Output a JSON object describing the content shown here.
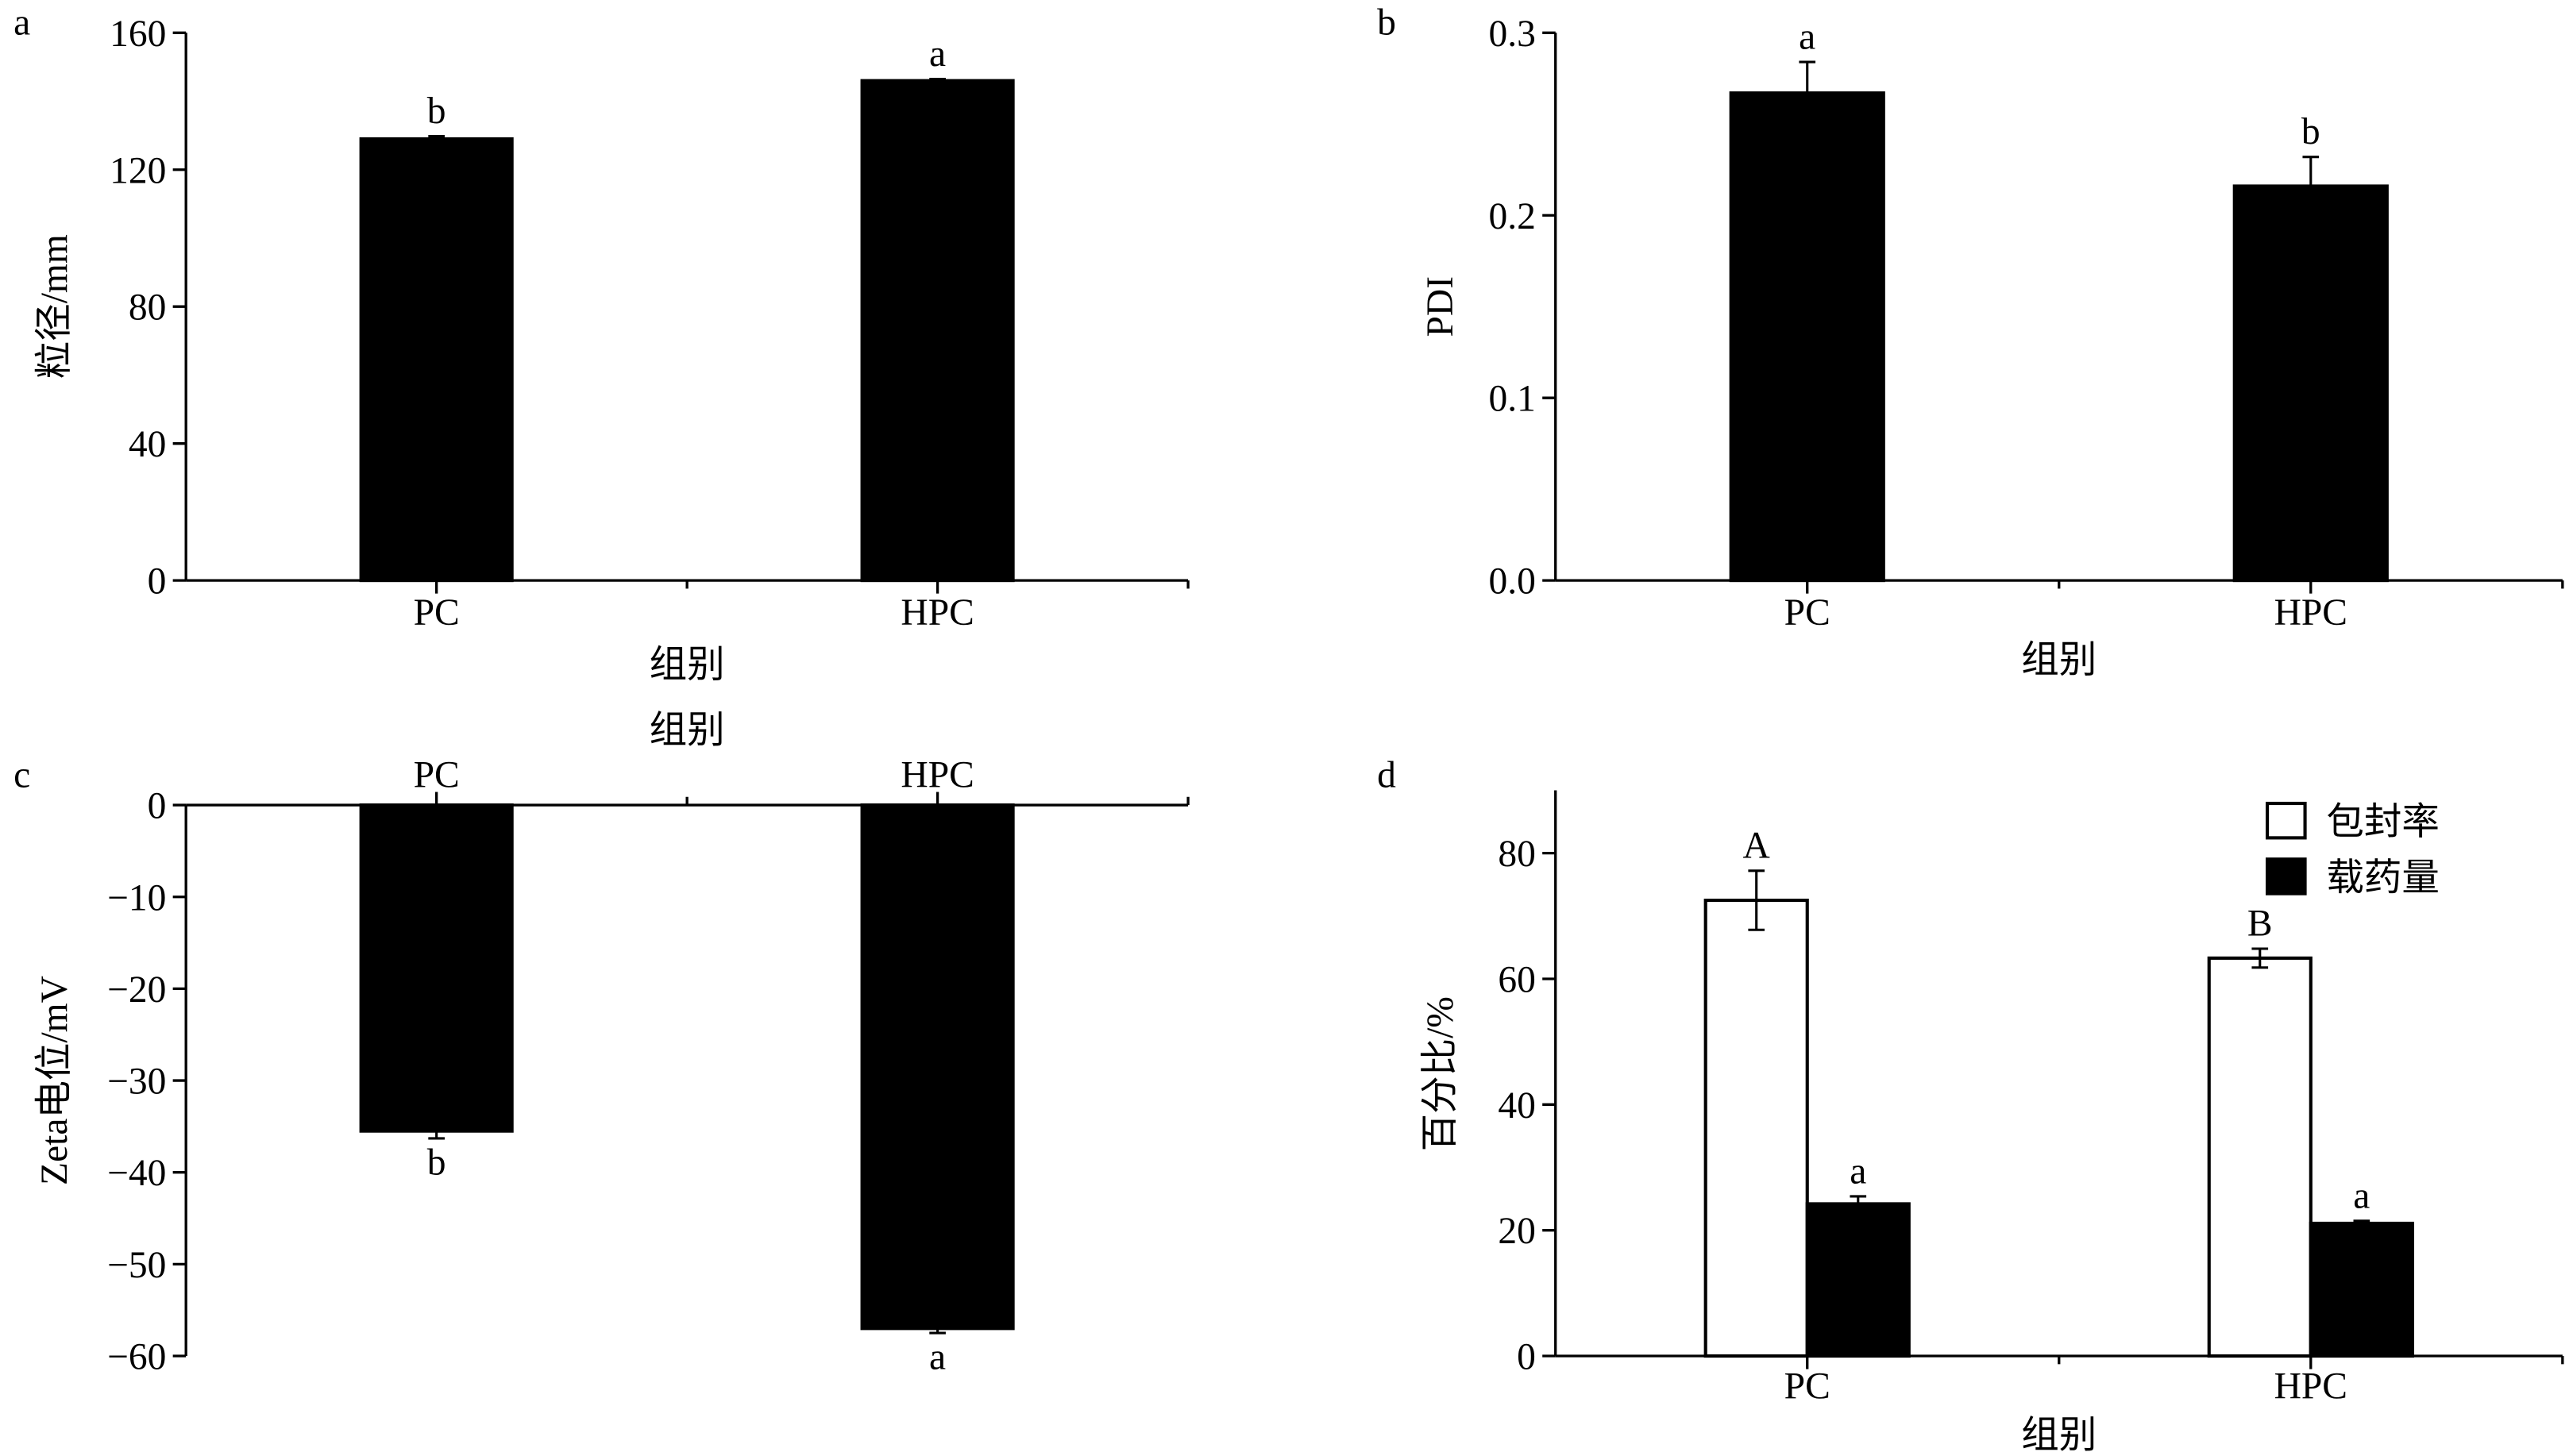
{
  "chart_data": [
    {
      "panel": "a",
      "type": "bar",
      "categories": [
        "PC",
        "HPC"
      ],
      "series": [
        {
          "values": [
            129,
            146
          ],
          "errors": [
            0.8,
            0.5
          ],
          "letters": [
            "b",
            "a"
          ],
          "color": "#000000"
        }
      ],
      "ylabel": "粒径/mm",
      "xlabel": "组别",
      "ylim": [
        0,
        160
      ],
      "yticks": [
        0,
        40,
        80,
        120,
        160
      ],
      "ytick_labels": [
        "0",
        "40",
        "80",
        "120",
        "160"
      ],
      "xaxis_position": "bottom",
      "grid": false
    },
    {
      "panel": "b",
      "type": "bar",
      "categories": [
        "PC",
        "HPC"
      ],
      "series": [
        {
          "values": [
            0.267,
            0.216
          ],
          "errors": [
            0.017,
            0.016
          ],
          "letters": [
            "a",
            "b"
          ],
          "color": "#000000"
        }
      ],
      "ylabel": "PDI",
      "xlabel": "组别",
      "ylim": [
        0,
        0.3
      ],
      "yticks": [
        0,
        0.1,
        0.2,
        0.3
      ],
      "ytick_labels": [
        "0.0",
        "0.1",
        "0.2",
        "0.3"
      ],
      "xaxis_position": "bottom",
      "grid": false
    },
    {
      "panel": "c",
      "type": "bar",
      "categories": [
        "PC",
        "HPC"
      ],
      "series": [
        {
          "values": [
            -35.5,
            -57.0
          ],
          "errors": [
            0.8,
            0.5
          ],
          "letters": [
            "b",
            "a"
          ],
          "color": "#000000"
        }
      ],
      "ylabel": "Zeta电位/mV",
      "xlabel": "组别",
      "ylim": [
        -60,
        0
      ],
      "yticks": [
        0,
        -10,
        -20,
        -30,
        -40,
        -50,
        -60
      ],
      "ytick_labels": [
        "0",
        "−10",
        "−20",
        "−30",
        "−40",
        "−50",
        "−60"
      ],
      "xaxis_position": "top",
      "grid": false
    },
    {
      "panel": "d",
      "type": "bar",
      "categories": [
        "PC",
        "HPC"
      ],
      "series": [
        {
          "name": "包封率",
          "values": [
            72.5,
            63.3
          ],
          "errors": [
            4.7,
            1.5
          ],
          "letters": [
            "A",
            "B"
          ],
          "color": "#ffffff"
        },
        {
          "name": "载药量",
          "values": [
            24.2,
            21.1
          ],
          "errors": [
            1.2,
            0.4
          ],
          "letters": [
            "a",
            "a"
          ],
          "color": "#000000"
        }
      ],
      "ylabel": "百分比/%",
      "xlabel": "组别",
      "ylim": [
        0,
        90
      ],
      "yticks": [
        0,
        20,
        40,
        60,
        80
      ],
      "ytick_labels": [
        "0",
        "20",
        "40",
        "60",
        "80"
      ],
      "xaxis_position": "bottom",
      "legend": "top-right",
      "grid": false
    }
  ]
}
